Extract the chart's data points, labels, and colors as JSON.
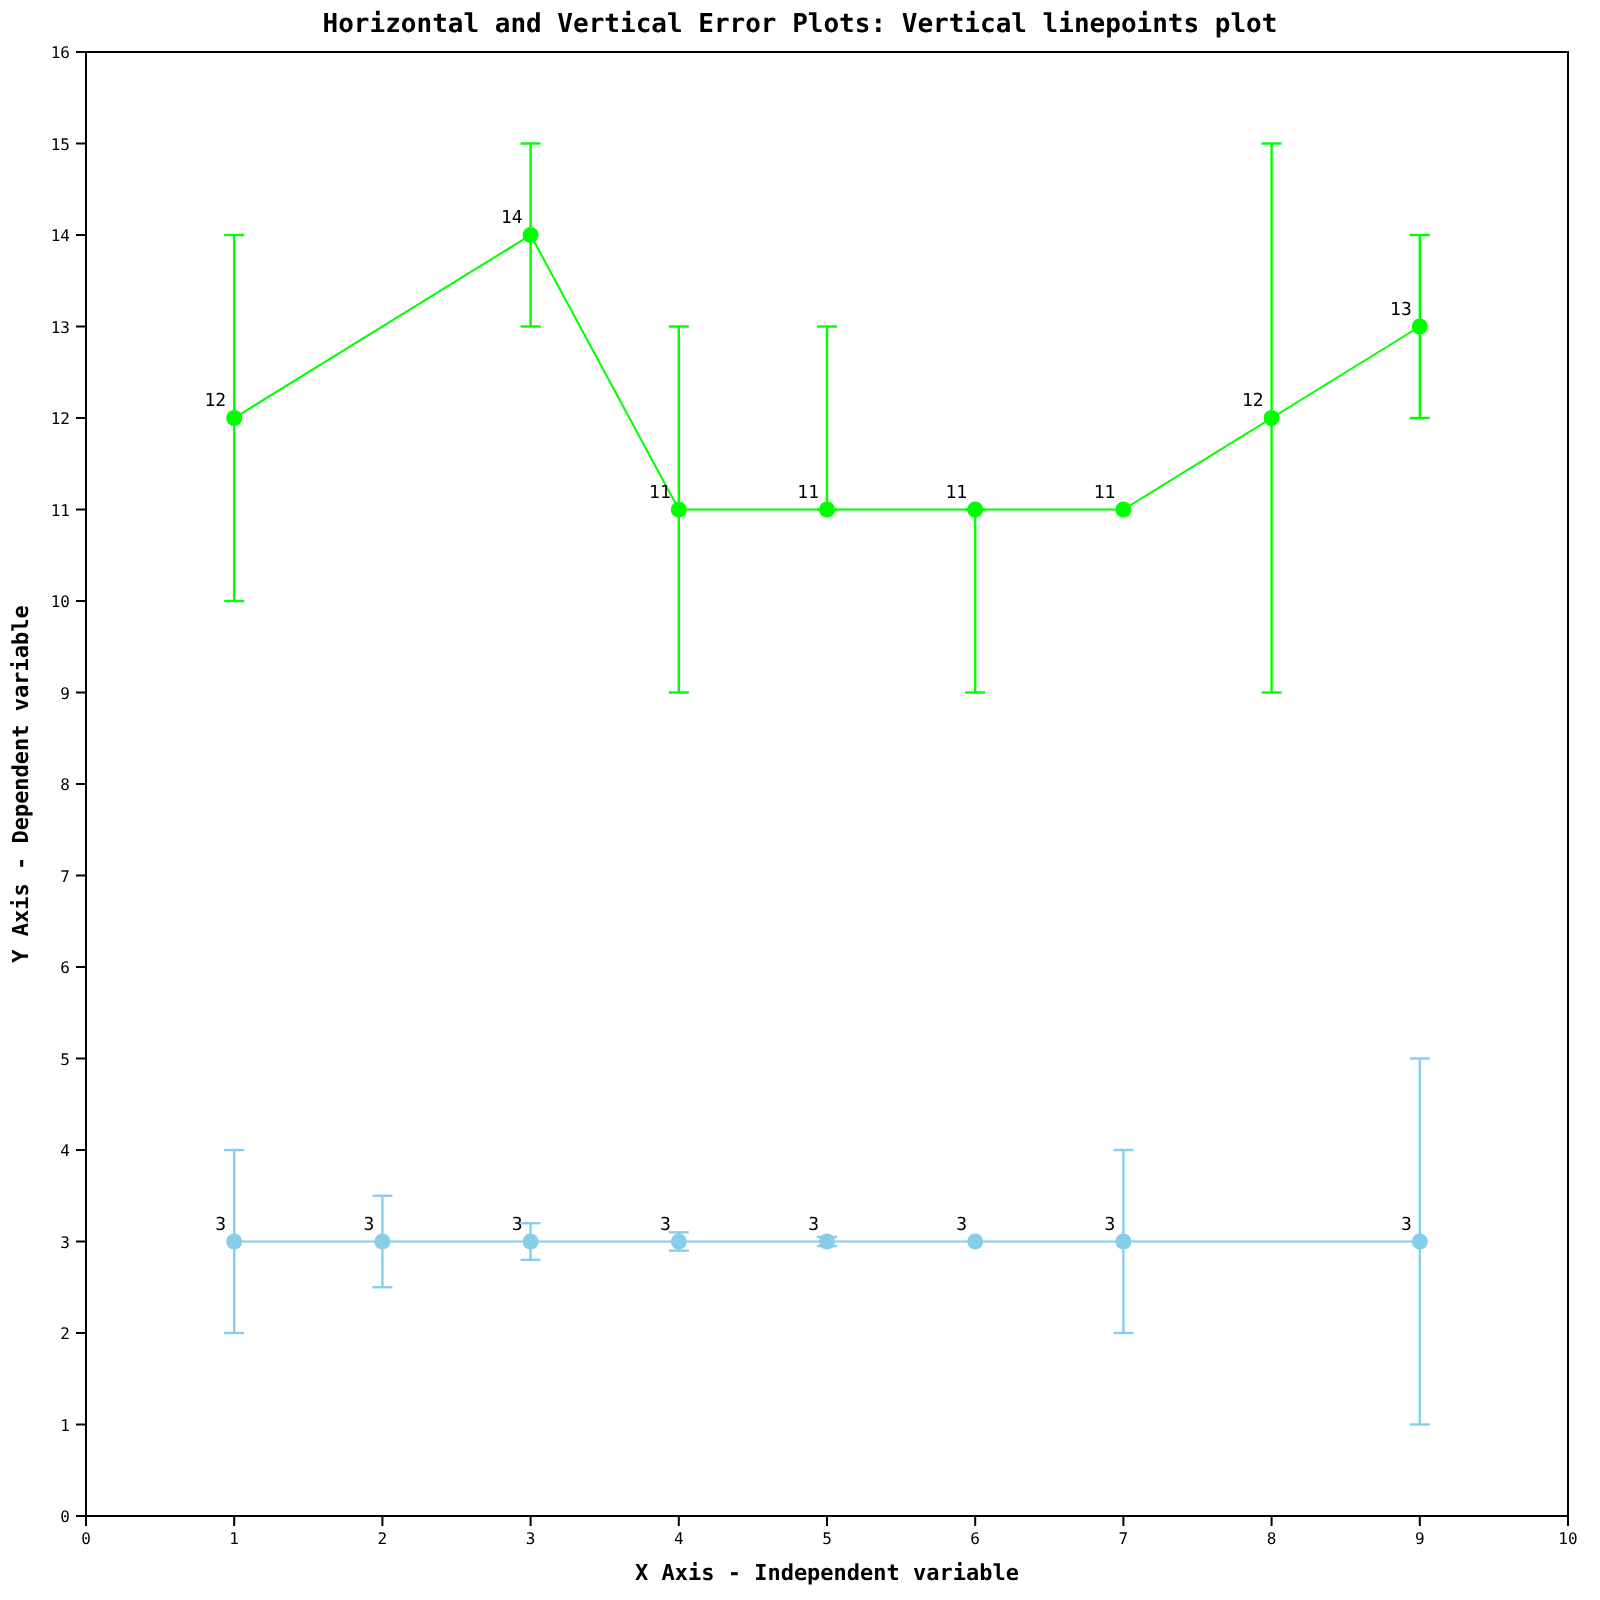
{
  "chart_data": {
    "type": "line",
    "title": "Horizontal and Vertical Error Plots: Vertical linepoints plot",
    "xlabel": "X Axis - Independent variable",
    "ylabel": "Y Axis - Dependent variable",
    "xlim": [
      0,
      10
    ],
    "xticks": [
      0,
      1,
      2,
      3,
      4,
      5,
      6,
      7,
      8,
      9,
      10
    ],
    "ylim": [
      0,
      16
    ],
    "yticks": [
      0,
      1,
      2,
      3,
      4,
      5,
      6,
      7,
      8,
      9,
      10,
      11,
      12,
      13,
      14,
      15,
      16
    ],
    "grid": false,
    "marker": "circle",
    "line_style": "solid",
    "data_labels": true,
    "series": [
      {
        "color": "#00ff00",
        "x": [
          1,
          3,
          4,
          5,
          6,
          7,
          8,
          9
        ],
        "values": [
          12,
          14,
          11,
          11,
          11,
          11,
          12,
          13
        ],
        "errors": [
          2,
          1,
          2,
          [
            11,
            13
          ],
          [
            9,
            11
          ],
          null,
          3,
          1
        ]
      },
      {
        "color": "#87ceeb",
        "x": [
          1,
          2,
          3,
          4,
          5,
          6,
          7,
          9
        ],
        "values": [
          3,
          3,
          3,
          3,
          3,
          3,
          3,
          3
        ],
        "errors": [
          1,
          0.5,
          0.2,
          0.1,
          0.05,
          null,
          1,
          2
        ]
      }
    ]
  }
}
